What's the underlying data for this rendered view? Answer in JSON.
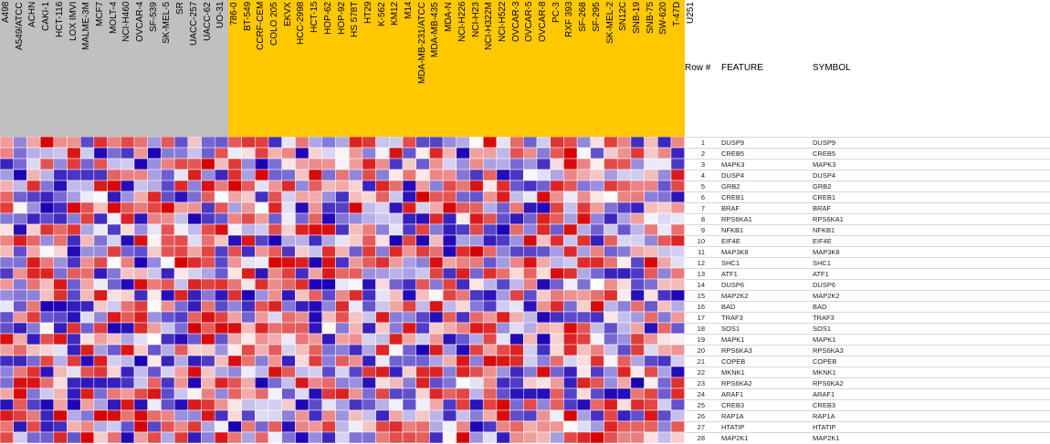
{
  "columns_gray": [
    "A498",
    "A549/ATCC",
    "ACHN",
    "CAKI-1",
    "HCT-116",
    "LOX IMVI",
    "MALME-3M",
    "MCF7",
    "MOLT-4",
    "NCI-H460",
    "OVCAR-4",
    "SF-539",
    "SK-MEL-5",
    "SR",
    "UACC-257",
    "UACC-62",
    "UO-31"
  ],
  "columns_yellow": [
    "786-0",
    "BT-549",
    "CCRF-CEM",
    "COLO 205",
    "EKVX",
    "HCC-2998",
    "HCT-15",
    "HOP-62",
    "HOP-92",
    "HS 578T",
    "HT29",
    "K-562",
    "KM12",
    "M14",
    "MDA-MB-231/ATCC",
    "MDA-MB-435",
    "MDA-N",
    "NCI-H226",
    "NCI-H23",
    "NCI-H322M",
    "NCI-H522",
    "OVCAR-3",
    "OVCAR-5",
    "OVCAR-8",
    "PC-3",
    "RXF 393",
    "SF-268",
    "SF-295",
    "SK-MEL-2",
    "SN12C",
    "SNB-19",
    "SNB-75",
    "SW-620",
    "T-47D",
    "U251"
  ],
  "header": {
    "row_num": "Row #",
    "feature": "FEATURE",
    "symbol": "SYMBOL"
  },
  "colors": {
    "gray_band": "#c0c0c0",
    "yellow_band": "#ffc800",
    "low": "#1a00b4",
    "high": "#d70000",
    "mid": "#ffffff"
  },
  "chart_data": {
    "type": "heatmap",
    "rows": [
      {
        "n": "1",
        "feature": "DUSP9",
        "symbol": "DUSP9"
      },
      {
        "n": "2",
        "feature": "CREB5",
        "symbol": "CREB5"
      },
      {
        "n": "3",
        "feature": "MAPK3",
        "symbol": "MAPK3"
      },
      {
        "n": "4",
        "feature": "DUSP4",
        "symbol": "DUSP4"
      },
      {
        "n": "5",
        "feature": "GRB2",
        "symbol": "GRB2"
      },
      {
        "n": "6",
        "feature": "CREB1",
        "symbol": "CREB1"
      },
      {
        "n": "7",
        "feature": "BRAF",
        "symbol": "BRAF"
      },
      {
        "n": "8",
        "feature": "RPS6KA1",
        "symbol": "RPS6KA1"
      },
      {
        "n": "9",
        "feature": "NFKB1",
        "symbol": "NFKB1"
      },
      {
        "n": "10",
        "feature": "EIF4E",
        "symbol": "EIF4E"
      },
      {
        "n": "11",
        "feature": "MAP3K8",
        "symbol": "MAP3K8"
      },
      {
        "n": "12",
        "feature": "SHC1",
        "symbol": "SHC1"
      },
      {
        "n": "13",
        "feature": "ATF1",
        "symbol": "ATF1"
      },
      {
        "n": "14",
        "feature": "DUSP6",
        "symbol": "DUSP6"
      },
      {
        "n": "15",
        "feature": "MAP2K2",
        "symbol": "MAP2K2"
      },
      {
        "n": "16",
        "feature": "BAD",
        "symbol": "BAD"
      },
      {
        "n": "17",
        "feature": "TRAF3",
        "symbol": "TRAF3"
      },
      {
        "n": "18",
        "feature": "SOS1",
        "symbol": "SOS1"
      },
      {
        "n": "19",
        "feature": "MAPK1",
        "symbol": "MAPK1"
      },
      {
        "n": "20",
        "feature": "RPS6KA3",
        "symbol": "RPS6KA3"
      },
      {
        "n": "21",
        "feature": "COPEB",
        "symbol": "COPEB"
      },
      {
        "n": "22",
        "feature": "MKNK1",
        "symbol": "MKNK1"
      },
      {
        "n": "23",
        "feature": "RPS6KA2",
        "symbol": "RPS6KA2"
      },
      {
        "n": "24",
        "feature": "ARAF1",
        "symbol": "ARAF1"
      },
      {
        "n": "25",
        "feature": "CREB3",
        "symbol": "CREB3"
      },
      {
        "n": "26",
        "feature": "RAP1A",
        "symbol": "RAP1A"
      },
      {
        "n": "27",
        "feature": "HTATIP",
        "symbol": "HTATIP"
      },
      {
        "n": "28",
        "feature": "MAP2K1",
        "symbol": "MAP2K1"
      }
    ],
    "value_scale": [
      -1,
      1
    ]
  }
}
